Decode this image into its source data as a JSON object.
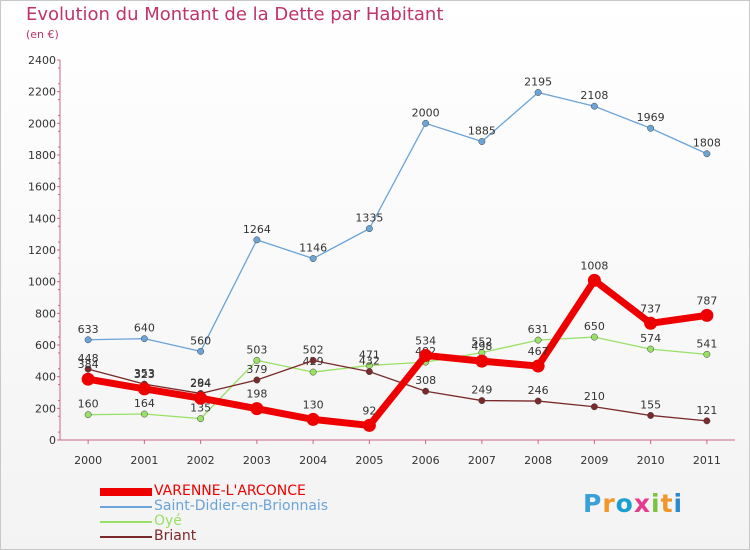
{
  "title": "Evolution du Montant de la Dette par Habitant",
  "subtitle": "(en €)",
  "logo": {
    "text": "Proxiti",
    "colors": [
      "#3aa0d8",
      "#f0962a",
      "#1aa0d0",
      "#e63b8c",
      "#7dc242",
      "#f0962a",
      "#2a8bd0"
    ]
  },
  "chart_data": {
    "type": "line",
    "title": "Evolution du Montant de la Dette par Habitant",
    "subtitle": "(en €)",
    "x": [
      "2000",
      "2001",
      "2002",
      "2003",
      "2004",
      "2005",
      "2006",
      "2007",
      "2008",
      "2009",
      "2010",
      "2011"
    ],
    "ylim": [
      0,
      2400
    ],
    "yticks": [
      0,
      200,
      400,
      600,
      800,
      1000,
      1200,
      1400,
      1600,
      1800,
      2000,
      2200,
      2400
    ],
    "grid": false,
    "legend": "bottom-left",
    "series": [
      {
        "name": "VARENNE-L'ARCONCE",
        "color": "#ee0000",
        "values": [
          384,
          323,
          264,
          198,
          130,
          92,
          534,
          498,
          467,
          1008,
          737,
          787
        ]
      },
      {
        "name": "Saint-Didier-en-Brionnais",
        "color": "#6aa4d8",
        "values": [
          633,
          640,
          560,
          1264,
          1146,
          1335,
          2000,
          1885,
          2195,
          2108,
          1969,
          1808
        ]
      },
      {
        "name": "Oyé",
        "color": "#99e066",
        "values": [
          160,
          164,
          135,
          503,
          429,
          471,
          492,
          552,
          631,
          650,
          574,
          541
        ]
      },
      {
        "name": "Briant",
        "color": "#7a2a2a",
        "values": [
          448,
          353,
          294,
          379,
          502,
          432,
          308,
          249,
          246,
          210,
          155,
          121
        ]
      }
    ]
  }
}
